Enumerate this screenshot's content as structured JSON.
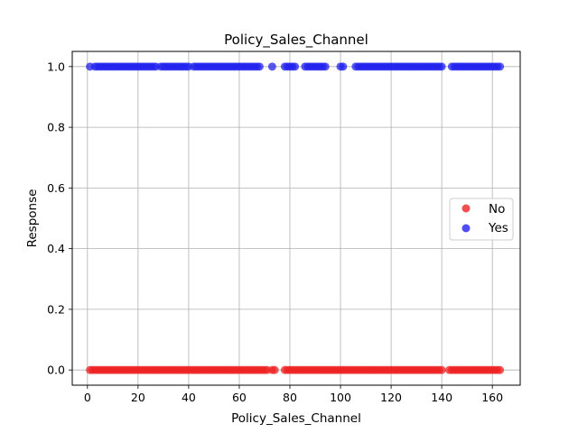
{
  "chart_data": {
    "type": "scatter",
    "title": "Policy_Sales_Channel",
    "xlabel": "Policy_Sales_Channel",
    "ylabel": "Response",
    "xlim": [
      -6,
      171
    ],
    "ylim": [
      -0.05,
      1.05
    ],
    "xticks": [
      0,
      20,
      40,
      60,
      80,
      100,
      120,
      140,
      160
    ],
    "xtick_labels": [
      "0",
      "20",
      "40",
      "60",
      "80",
      "100",
      "120",
      "140",
      "160"
    ],
    "yticks": [
      0.0,
      0.2,
      0.4,
      0.6,
      0.8,
      1.0
    ],
    "ytick_labels": [
      "0.0",
      "0.2",
      "0.4",
      "0.6",
      "0.8",
      "1.0"
    ],
    "grid": true,
    "legend_position": "center-right",
    "series": [
      {
        "name": "No",
        "color": "#ee2222",
        "y": 0,
        "x": [
          1,
          2,
          3,
          4,
          5,
          6,
          7,
          8,
          9,
          10,
          11,
          12,
          13,
          14,
          15,
          16,
          17,
          18,
          19,
          20,
          21,
          22,
          23,
          24,
          25,
          26,
          27,
          28,
          29,
          30,
          31,
          32,
          33,
          34,
          35,
          36,
          37,
          38,
          39,
          40,
          41,
          42,
          43,
          44,
          45,
          46,
          47,
          48,
          49,
          50,
          51,
          52,
          53,
          54,
          55,
          56,
          57,
          58,
          59,
          60,
          61,
          62,
          63,
          64,
          65,
          66,
          67,
          68,
          69,
          70,
          71,
          73,
          74,
          78,
          79,
          80,
          81,
          82,
          83,
          84,
          85,
          86,
          87,
          88,
          89,
          90,
          91,
          92,
          93,
          94,
          95,
          96,
          97,
          98,
          99,
          100,
          101,
          102,
          103,
          104,
          105,
          106,
          107,
          108,
          109,
          110,
          111,
          112,
          113,
          114,
          115,
          116,
          117,
          118,
          119,
          120,
          121,
          122,
          123,
          124,
          125,
          126,
          127,
          128,
          129,
          130,
          131,
          132,
          133,
          134,
          135,
          136,
          137,
          138,
          139,
          140,
          143,
          144,
          145,
          146,
          147,
          148,
          149,
          150,
          151,
          152,
          153,
          154,
          155,
          156,
          157,
          158,
          159,
          160,
          161,
          162,
          163
        ]
      },
      {
        "name": "Yes",
        "color": "#2222ee",
        "y": 1,
        "x": [
          1,
          3,
          4,
          5,
          6,
          7,
          8,
          9,
          10,
          11,
          12,
          13,
          14,
          15,
          16,
          17,
          18,
          19,
          20,
          21,
          22,
          23,
          24,
          25,
          26,
          27,
          29,
          30,
          31,
          32,
          33,
          34,
          35,
          36,
          37,
          38,
          39,
          40,
          42,
          43,
          44,
          45,
          46,
          47,
          48,
          49,
          50,
          51,
          52,
          53,
          54,
          55,
          56,
          57,
          58,
          59,
          60,
          61,
          62,
          63,
          64,
          65,
          66,
          67,
          68,
          73,
          78,
          79,
          80,
          81,
          82,
          86,
          87,
          88,
          89,
          90,
          91,
          92,
          93,
          94,
          100,
          101,
          106,
          107,
          108,
          109,
          110,
          111,
          112,
          113,
          114,
          115,
          116,
          117,
          118,
          119,
          120,
          121,
          122,
          123,
          124,
          125,
          126,
          127,
          128,
          129,
          130,
          131,
          132,
          133,
          134,
          135,
          136,
          137,
          138,
          139,
          140,
          144,
          145,
          146,
          147,
          148,
          149,
          150,
          151,
          152,
          153,
          154,
          155,
          156,
          157,
          158,
          159,
          160,
          161,
          162,
          163
        ]
      }
    ]
  }
}
